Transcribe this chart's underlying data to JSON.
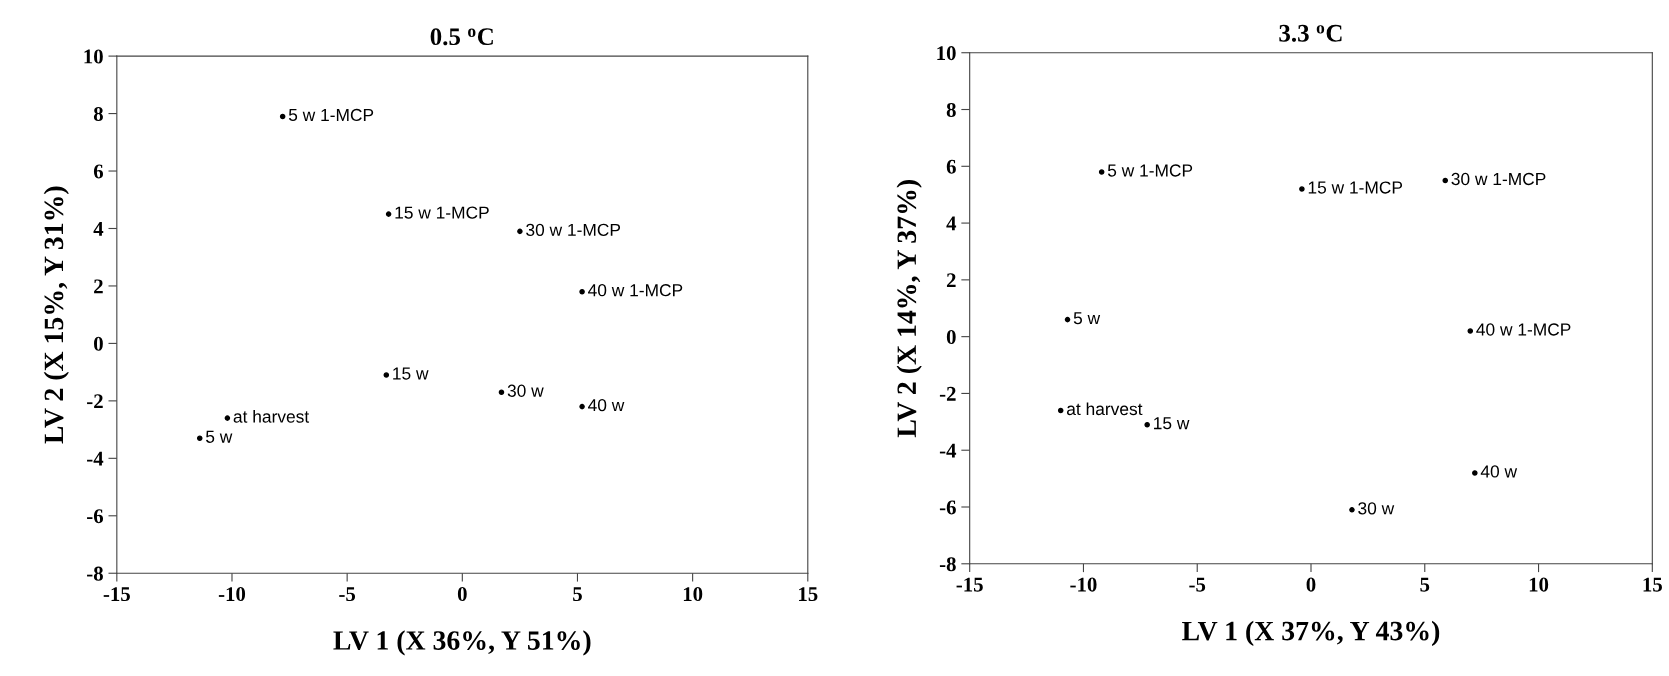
{
  "chart_data": [
    {
      "type": "scatter",
      "title": "0.5 $^{o}$C",
      "xlabel": "LV 1 (X 36%, Y 51%)",
      "ylabel": "LV 2 (X 15%, Y 31%)",
      "series": [
        {
          "name": "5 w 1-MCP",
          "x": [
            -7.8
          ],
          "values": [
            7.9
          ]
        },
        {
          "name": "15 w 1-MCP",
          "x": [
            -3.2
          ],
          "values": [
            4.5
          ]
        },
        {
          "name": "30 w 1-MCP",
          "x": [
            2.5
          ],
          "values": [
            3.9
          ]
        },
        {
          "name": "40 w 1-MCP",
          "x": [
            5.2
          ],
          "values": [
            1.8
          ]
        },
        {
          "name": "15 w",
          "x": [
            -3.3
          ],
          "values": [
            -1.1
          ]
        },
        {
          "name": "30 w",
          "x": [
            1.7
          ],
          "values": [
            -1.7
          ]
        },
        {
          "name": "40 w",
          "x": [
            5.2
          ],
          "values": [
            -2.2
          ]
        },
        {
          "name": "at harvest",
          "x": [
            -10.2
          ],
          "values": [
            -2.6
          ]
        },
        {
          "name": "5 w",
          "x": [
            -11.4
          ],
          "values": [
            -3.3
          ]
        }
      ],
      "color": "#000000",
      "marker": "circle",
      "xlim": [
        -15,
        15
      ],
      "xticks": [
        -15,
        -10,
        -5,
        0,
        5,
        10,
        15
      ],
      "ylim": [
        -8,
        10
      ],
      "yticks": [
        -8,
        -6,
        -4,
        -2,
        0,
        2,
        4,
        6,
        8,
        10
      ],
      "grid": false,
      "legend": false
    },
    {
      "type": "scatter",
      "title": "3.3 $^{o}$C",
      "xlabel": "LV 1 (X 37%, Y 43%)",
      "ylabel": "LV 2 (X 14%, Y 37%)",
      "series": [
        {
          "name": "5 w 1-MCP",
          "x": [
            -9.2
          ],
          "values": [
            5.8
          ]
        },
        {
          "name": "15 w 1-MCP",
          "x": [
            -0.4
          ],
          "values": [
            5.2
          ]
        },
        {
          "name": "30 w 1-MCP",
          "x": [
            5.9
          ],
          "values": [
            5.5
          ]
        },
        {
          "name": "5 w",
          "x": [
            -10.7
          ],
          "values": [
            0.6
          ]
        },
        {
          "name": "40 w 1-MCP",
          "x": [
            7.0
          ],
          "values": [
            0.2
          ]
        },
        {
          "name": "at harvest",
          "x": [
            -11.0
          ],
          "values": [
            -2.6
          ]
        },
        {
          "name": "15 w",
          "x": [
            -7.2
          ],
          "values": [
            -3.1
          ]
        },
        {
          "name": "40 w",
          "x": [
            7.2
          ],
          "values": [
            -4.8
          ]
        },
        {
          "name": "30 w",
          "x": [
            1.8
          ],
          "values": [
            -6.1
          ]
        }
      ],
      "color": "#000000",
      "marker": "circle",
      "xlim": [
        -15,
        15
      ],
      "xticks": [
        -15,
        -10,
        -5,
        0,
        5,
        10,
        15
      ],
      "ylim": [
        -8,
        10
      ],
      "yticks": [
        -8,
        -6,
        -4,
        -2,
        0,
        2,
        4,
        6,
        8,
        10
      ],
      "grid": false,
      "legend": false
    }
  ]
}
